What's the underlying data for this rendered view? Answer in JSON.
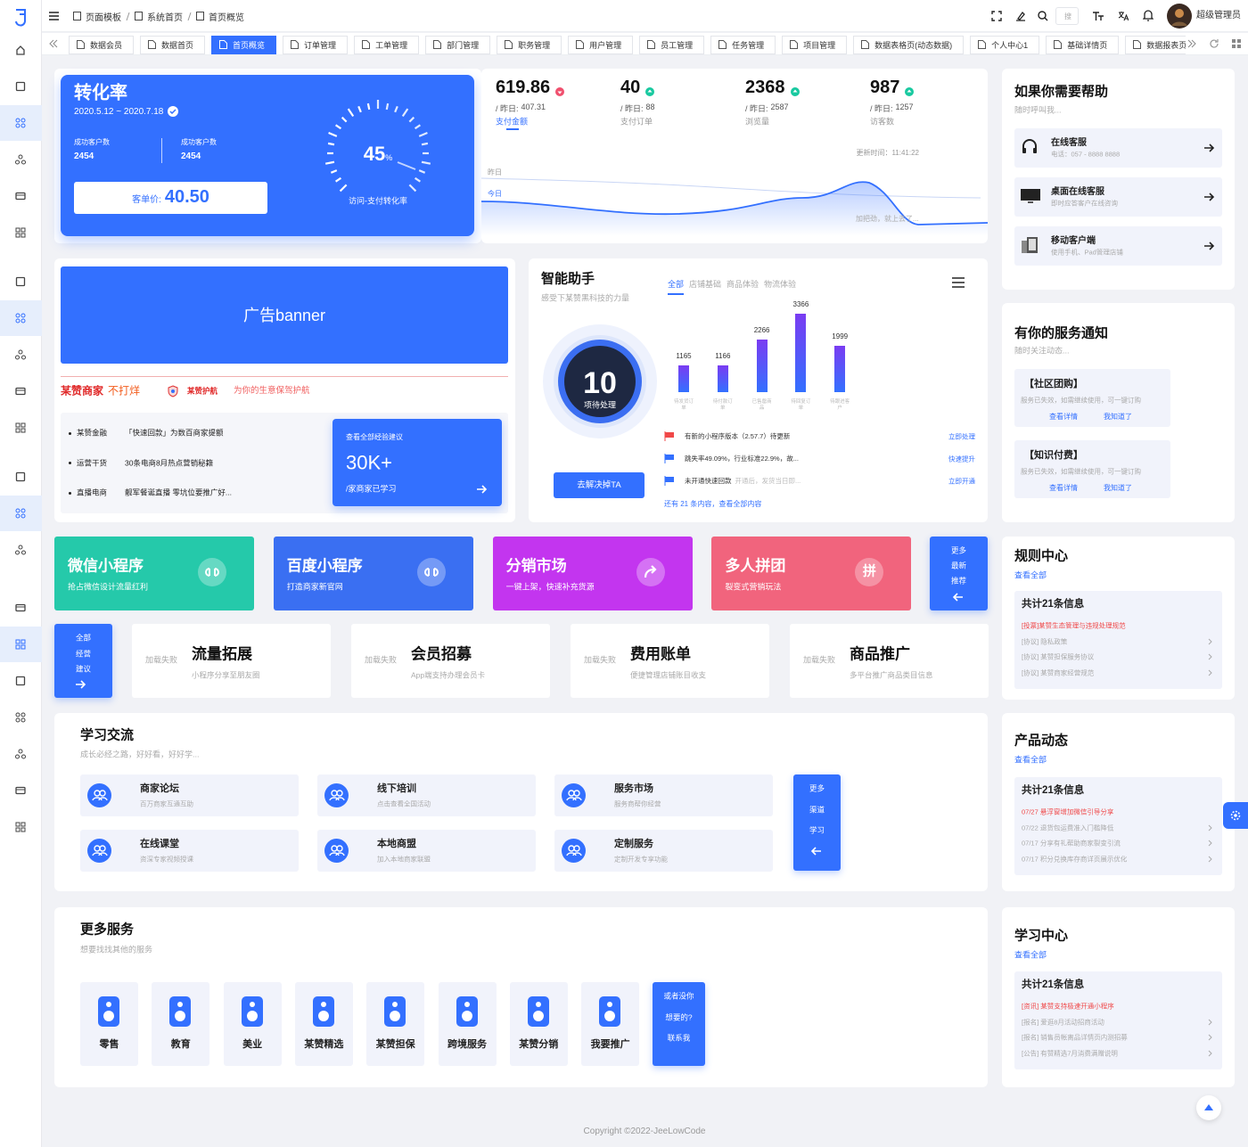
{
  "header": {
    "breadcrumb": [
      "页面模板",
      "系统首页",
      "首页概览"
    ],
    "search_placeholder": "搜",
    "user_name": "超级管理员"
  },
  "tabs": {
    "items": [
      "数据会员",
      "数据首页",
      "首页概览",
      "订单管理",
      "工单管理",
      "部门管理",
      "职务管理",
      "用户管理",
      "员工管理",
      "任务管理",
      "项目管理",
      "数据表格页(动态数据)",
      "个人中心1",
      "基础详情页",
      "数据报表页"
    ],
    "active": 2
  },
  "conversion": {
    "title": "转化率",
    "date_range": "2020.5.12 ~ 2020.7.18",
    "stats": [
      {
        "label": "成功客户数",
        "value": 2454
      },
      {
        "label": "成功客户数",
        "value": 2454
      }
    ],
    "price_label": "客单价:",
    "price": "40.50",
    "gauge_value": 45,
    "gauge_unit": "%",
    "gauge_label": "访问-支付转化率"
  },
  "overview": {
    "yesterday_label": "/ 昨日:",
    "items": [
      {
        "value": 619.86,
        "trend": "down",
        "yesterday": 407.31,
        "label": "支付金额"
      },
      {
        "value": 40,
        "trend": "up",
        "yesterday": 88,
        "label": "支付订单"
      },
      {
        "value": 2368,
        "trend": "up",
        "yesterday": 2587,
        "label": "浏览量"
      },
      {
        "value": 987,
        "trend": "up",
        "yesterday": 1257,
        "label": "访客数"
      }
    ],
    "update_time": "更新时间：11:41:22",
    "legend": [
      "昨日",
      "今日"
    ],
    "note": "加把劲，就上去了..."
  },
  "help": {
    "title": "如果你需要帮助",
    "subtitle": "随时呼叫我...",
    "items": [
      {
        "title": "在线客服",
        "desc": "电话：057 - 8888 8888"
      },
      {
        "title": "桌面在线客服",
        "desc": "即时应答客户在线咨询"
      },
      {
        "title": "移动客户端",
        "desc": "使用手机、Pad管理店铺"
      }
    ]
  },
  "banner": {
    "text": "广告banner",
    "slogan": "某赞商家",
    "slogan_tail": "不打烊",
    "badge": "某赞护航",
    "badge_text": "为你的生意保驾护航",
    "news": [
      {
        "tag": "某赞金融",
        "text": "「快速回款」为数百商家提额"
      },
      {
        "tag": "运营干货",
        "text": "30条电商8月热点营销秘籍"
      },
      {
        "tag": "直播电商",
        "text": "靓军餐诞直播 零坑位要推广好..."
      }
    ],
    "promo": {
      "caption": "查看全部经验建议",
      "value": "30K+",
      "unit": "/家商家已学习"
    }
  },
  "assistant": {
    "title": "智能助手",
    "subtitle": "感受下某赞黑科技的力量",
    "tabs": [
      "全部",
      "店铺基础",
      "商品体验",
      "物流体验"
    ],
    "pending_count": 10,
    "pending_label": "项待处理",
    "button": "去解决掉TA",
    "chart": {
      "type": "bar",
      "categories": [
        "待发货订单",
        "待付款订单",
        "已售罄商品",
        "待回复订单",
        "待跟进客户"
      ],
      "values": [
        1165,
        1166,
        2266,
        3366,
        1999
      ]
    },
    "tasks": [
      {
        "text": "有新的小程序版本（2.57.7）待更新",
        "hint": null,
        "action": "立即处理",
        "flag": "red"
      },
      {
        "text": "跳失率49.09%，行业标准22.9%，故...",
        "hint": null,
        "action": "快速提升",
        "flag": "blue"
      },
      {
        "text": "未开通快速回款",
        "hint": "开通后，发货当日即...",
        "action": "立即开通",
        "flag": "blue"
      }
    ],
    "footer": "还有 21 条内容，查看全部内容"
  },
  "notices": {
    "title": "有你的服务通知",
    "subtitle": "随时关注动态...",
    "items": [
      {
        "title": "【社区团购】",
        "desc": "服务已失效，如需继续使用，可一键订购",
        "links": [
          "查看详情",
          "我知道了"
        ]
      },
      {
        "title": "【知识付费】",
        "desc": "服务已失效，如需继续使用，可一键订购",
        "links": [
          "查看详情",
          "我知道了"
        ]
      }
    ]
  },
  "apps": {
    "items": [
      {
        "title": "微信小程序",
        "desc": "抢占微信设计流量红利",
        "color": "#25c9aa"
      },
      {
        "title": "百度小程序",
        "desc": "打造商家新官网",
        "color": "#3a6ff2"
      },
      {
        "title": "分销市场",
        "desc": "一键上架，快速补充货源",
        "color": "#c335ef"
      },
      {
        "title": "多人拼团",
        "desc": "裂变式营销玩法",
        "color": "#f1647d",
        "icon_text": "拼"
      }
    ],
    "more": [
      "更多",
      "最新",
      "推荐"
    ]
  },
  "features": {
    "more": [
      "全部",
      "经营",
      "建议"
    ],
    "items": [
      {
        "image_alt": "加载失败",
        "title": "流量拓展",
        "desc": "小程序分享至朋友圈"
      },
      {
        "image_alt": "加载失败",
        "title": "会员招募",
        "desc": "App端支持办理会员卡"
      },
      {
        "image_alt": "加载失败",
        "title": "费用账单",
        "desc": "便捷管理店铺账目收支"
      },
      {
        "image_alt": "加载失败",
        "title": "商品推广",
        "desc": "多平台推广商品类目信息"
      }
    ]
  },
  "rules": {
    "title": "规则中心",
    "link": "查看全部",
    "count": "共计21条信息",
    "items": [
      {
        "text": "[投票]某赞生态管理与违规处理规范",
        "highlight": true
      },
      {
        "text": "[协议] 隐私政策",
        "highlight": false
      },
      {
        "text": "[协议] 某赞担保服务协议",
        "highlight": false
      },
      {
        "text": "[协议] 某赞商家经营规范",
        "highlight": false
      }
    ]
  },
  "learning": {
    "title": "学习交流",
    "subtitle": "成长必经之路，好好看，好好学...",
    "items": [
      {
        "title": "商家论坛",
        "desc": "百万商家互通互助"
      },
      {
        "title": "线下培训",
        "desc": "点击查看全国活动"
      },
      {
        "title": "服务市场",
        "desc": "服务商帮你经营"
      },
      {
        "title": "在线课堂",
        "desc": "资深专家视频授课"
      },
      {
        "title": "本地商盟",
        "desc": "加入本地商家联盟"
      },
      {
        "title": "定制服务",
        "desc": "定制开发专享功能"
      }
    ],
    "more": [
      "更多",
      "渠道",
      "学习"
    ]
  },
  "product_news": {
    "title": "产品动态",
    "link": "查看全部",
    "count": "共计21条信息",
    "items": [
      {
        "text": "07/27 悬浮窗增加微信引导分享",
        "highlight": true
      },
      {
        "text": "07/22 退货包运费准入门槛降低",
        "highlight": false
      },
      {
        "text": "07/17 分享有礼帮助商家裂变引流",
        "highlight": false
      },
      {
        "text": "07/17 积分兑换库存商详页展示优化",
        "highlight": false
      }
    ]
  },
  "services": {
    "title": "更多服务",
    "subtitle": "想要找找其他的服务",
    "items": [
      "零售",
      "教育",
      "美业",
      "某赞精选",
      "某赞担保",
      "跨境服务",
      "某赞分销",
      "我要推广"
    ],
    "contact": [
      "或者没你",
      "想要的?",
      "联系我"
    ]
  },
  "study": {
    "title": "学习中心",
    "link": "查看全部",
    "count": "共计21条信息",
    "items": [
      {
        "text": "[资讯] 某赞支持极速开通小程序",
        "highlight": true
      },
      {
        "text": "[报名] 爱逛8月活动招商活动",
        "highlight": false
      },
      {
        "text": "[报名] 销售员帐离品详情页内测招募",
        "highlight": false
      },
      {
        "text": "[公告] 有赞精选7月消费满赠说明",
        "highlight": false
      }
    ]
  },
  "footer": "Copyright ©2022-JeeLowCode"
}
